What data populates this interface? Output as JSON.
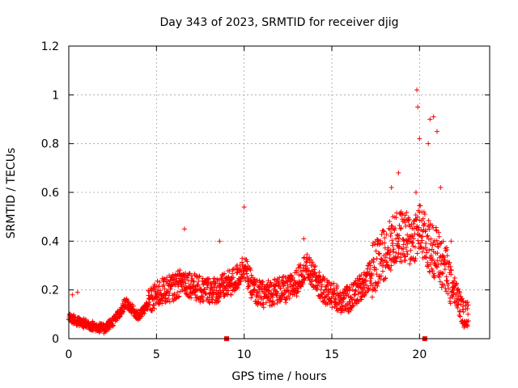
{
  "chart_data": {
    "type": "scatter",
    "title": "Day 343 of 2023, SRMTID for receiver djig",
    "xlabel": "GPS time / hours",
    "ylabel": "SRMTID / TECUs",
    "xlim": [
      0,
      24
    ],
    "ylim": [
      0,
      1.2
    ],
    "x_ticks": [
      0,
      5,
      10,
      15,
      20
    ],
    "x_tick_labels": [
      "0",
      "5",
      "10",
      "15",
      "20"
    ],
    "y_ticks": [
      0,
      0.2,
      0.4,
      0.6,
      0.8,
      1.0,
      1.2
    ],
    "y_tick_labels": [
      "0",
      "0.2",
      "0.4",
      "0.6",
      "0.8",
      "1",
      "1.2"
    ],
    "grid": true,
    "marker": "plus",
    "marker_color": "#ff0000",
    "zero_markers": [
      9.0,
      20.3
    ],
    "trend": [
      [
        0.0,
        0.09
      ],
      [
        0.5,
        0.07
      ],
      [
        1.0,
        0.06
      ],
      [
        1.5,
        0.05
      ],
      [
        2.0,
        0.04
      ],
      [
        2.5,
        0.07
      ],
      [
        3.0,
        0.11
      ],
      [
        3.2,
        0.15
      ],
      [
        3.5,
        0.13
      ],
      [
        4.0,
        0.09
      ],
      [
        4.5,
        0.14
      ],
      [
        5.0,
        0.18
      ],
      [
        5.5,
        0.2
      ],
      [
        6.0,
        0.21
      ],
      [
        6.5,
        0.24
      ],
      [
        7.0,
        0.22
      ],
      [
        7.5,
        0.2
      ],
      [
        8.0,
        0.2
      ],
      [
        8.5,
        0.2
      ],
      [
        9.0,
        0.22
      ],
      [
        9.5,
        0.24
      ],
      [
        10.0,
        0.3
      ],
      [
        10.5,
        0.2
      ],
      [
        11.0,
        0.18
      ],
      [
        11.5,
        0.19
      ],
      [
        12.0,
        0.2
      ],
      [
        12.5,
        0.2
      ],
      [
        13.0,
        0.23
      ],
      [
        13.5,
        0.3
      ],
      [
        14.0,
        0.25
      ],
      [
        14.5,
        0.2
      ],
      [
        15.0,
        0.18
      ],
      [
        15.5,
        0.16
      ],
      [
        16.0,
        0.16
      ],
      [
        16.5,
        0.2
      ],
      [
        17.0,
        0.24
      ],
      [
        17.5,
        0.3
      ],
      [
        18.0,
        0.35
      ],
      [
        18.5,
        0.4
      ],
      [
        19.0,
        0.42
      ],
      [
        19.5,
        0.4
      ],
      [
        20.0,
        0.45
      ],
      [
        20.5,
        0.38
      ],
      [
        21.0,
        0.35
      ],
      [
        21.5,
        0.28
      ],
      [
        22.0,
        0.2
      ],
      [
        22.5,
        0.1
      ],
      [
        22.8,
        0.1
      ]
    ],
    "peaks": [
      [
        0.2,
        0.18
      ],
      [
        0.5,
        0.19
      ],
      [
        6.6,
        0.45
      ],
      [
        8.6,
        0.4
      ],
      [
        10.0,
        0.54
      ],
      [
        13.4,
        0.41
      ],
      [
        18.4,
        0.62
      ],
      [
        18.8,
        0.68
      ],
      [
        19.8,
        0.6
      ],
      [
        19.85,
        1.02
      ],
      [
        19.9,
        0.95
      ],
      [
        20.0,
        0.82
      ],
      [
        20.5,
        0.8
      ],
      [
        20.6,
        0.9
      ],
      [
        20.8,
        0.91
      ],
      [
        21.0,
        0.85
      ],
      [
        21.2,
        0.62
      ],
      [
        21.8,
        0.4
      ]
    ]
  }
}
